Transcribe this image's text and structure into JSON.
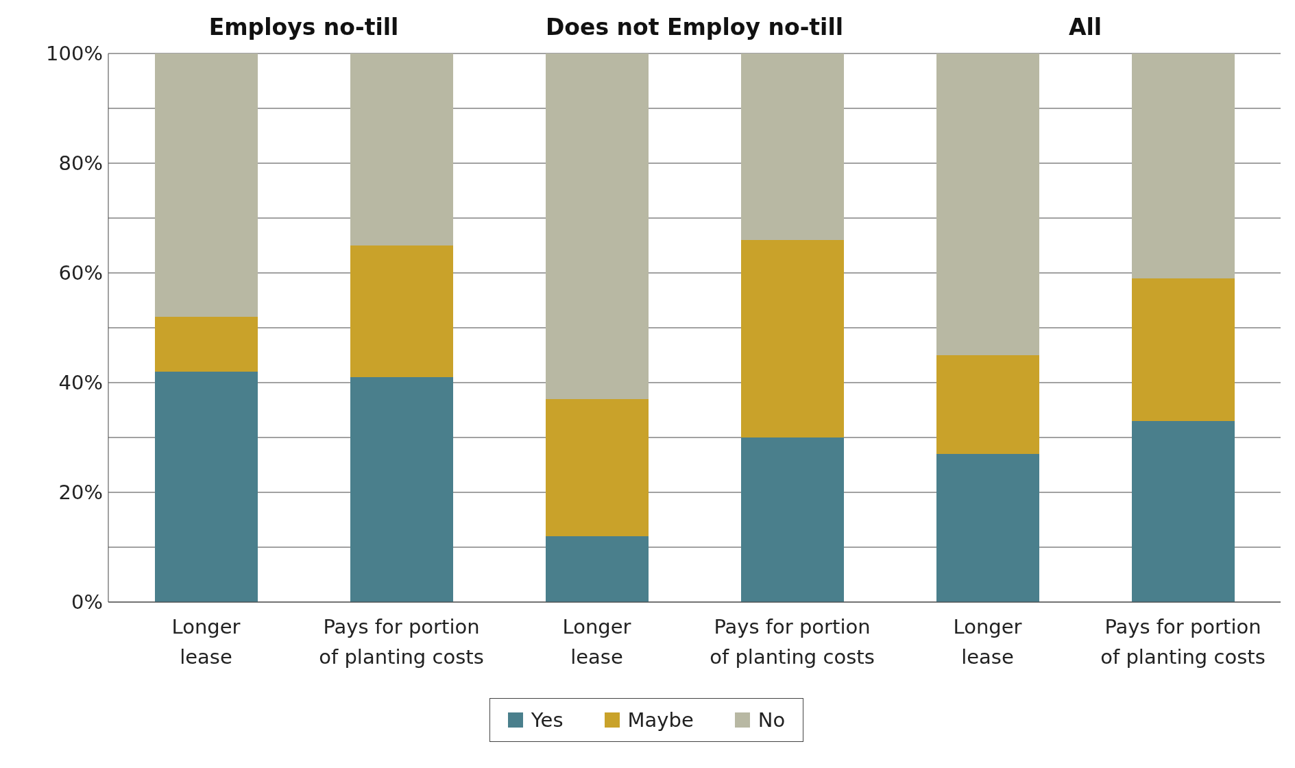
{
  "chart_data": {
    "type": "bar",
    "stacked": true,
    "categories": [
      "Longer lease",
      "Pays for portion of planting costs",
      "Longer lease",
      "Pays for portion of planting costs",
      "Longer lease",
      "Pays for portion of planting costs"
    ],
    "series": [
      {
        "name": "Yes",
        "color": "#4a7f8c",
        "values": [
          42,
          41,
          12,
          30,
          27,
          33
        ]
      },
      {
        "name": "Maybe",
        "color": "#c9a22a",
        "values": [
          10,
          24,
          25,
          36,
          18,
          26
        ]
      },
      {
        "name": "No",
        "color": "#b8b8a3",
        "values": [
          48,
          35,
          63,
          34,
          55,
          41
        ]
      }
    ],
    "annotations": [
      "Employs no-till",
      "Does not Employ no-till",
      "All"
    ],
    "ylim": [
      0,
      100
    ],
    "yticks": [
      {
        "value": 0,
        "label": "0%"
      },
      {
        "value": 10,
        "label": null
      },
      {
        "value": 20,
        "label": "20%"
      },
      {
        "value": 30,
        "label": null
      },
      {
        "value": 40,
        "label": "40%"
      },
      {
        "value": 50,
        "label": null
      },
      {
        "value": 60,
        "label": "60%"
      },
      {
        "value": 70,
        "label": null
      },
      {
        "value": 80,
        "label": "80%"
      },
      {
        "value": 90,
        "label": null
      },
      {
        "value": 100,
        "label": "100%"
      }
    ],
    "grid": "y",
    "legend": "bottom"
  }
}
